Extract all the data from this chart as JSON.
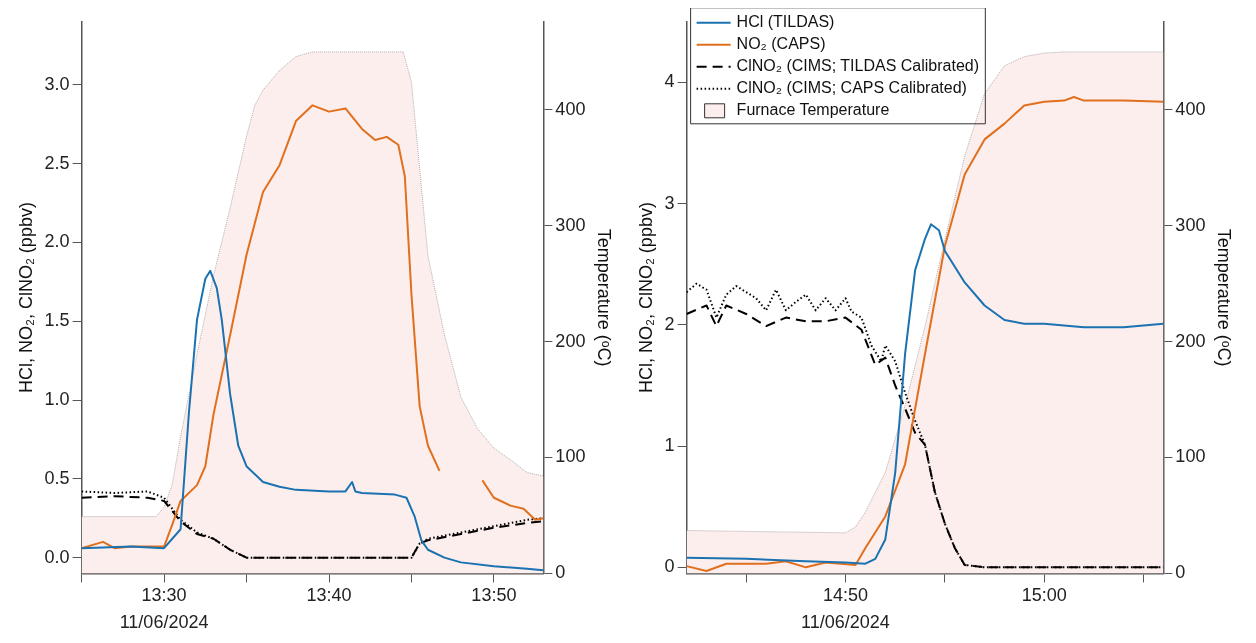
{
  "chart_data": [
    {
      "type": "line",
      "xlabel": "11/06/2024",
      "ylabel": "HCl, NO₂, ClNO₂ (ppbv)",
      "y2label": "Temperature (ᵒC)",
      "xlim": [
        13.4167,
        13.8833
      ],
      "xticks": [
        {
          "value": 13.4167,
          "label": null
        },
        {
          "value": 13.5,
          "label": "13:30"
        },
        {
          "value": 13.5833,
          "label": null
        },
        {
          "value": 13.6667,
          "label": "13:40"
        },
        {
          "value": 13.75,
          "label": null
        },
        {
          "value": 13.8333,
          "label": "13:50"
        }
      ],
      "ylim": [
        -0.1,
        3.4
      ],
      "yticks": [
        {
          "value": 0,
          "label": "0.0"
        },
        0.5,
        {
          "value": 1,
          "label": "1.0"
        },
        1.5,
        {
          "value": 2,
          "label": "2.0"
        },
        2.5,
        {
          "value": 3,
          "label": "3.0"
        }
      ],
      "y2lim": [
        0,
        476
      ],
      "y2ticks": [
        0,
        100,
        200,
        300,
        400
      ],
      "grid": false,
      "legend": false,
      "series": [
        {
          "type": "area",
          "axis": "y2",
          "color": "#fdeeee",
          "x": [
            13.4167,
            13.4917,
            13.5,
            13.5083,
            13.5167,
            13.5333,
            13.55,
            13.5667,
            13.5833,
            13.5917,
            13.6,
            13.6167,
            13.6333,
            13.65,
            13.7417,
            13.75,
            13.7583,
            13.7667,
            13.7833,
            13.8,
            13.8167,
            13.8333,
            13.85,
            13.8667,
            13.8833
          ],
          "values": [
            49,
            49,
            57,
            77,
            118,
            189,
            257,
            315,
            377,
            404,
            417,
            434,
            446,
            450,
            450,
            424,
            349,
            274,
            206,
            152,
            125,
            108,
            98,
            87,
            84
          ]
        },
        {
          "type": "line",
          "color": "#1a72b0",
          "x": [
            13.4167,
            13.4667,
            13.5,
            13.5167,
            13.525,
            13.5333,
            13.5417,
            13.5467,
            13.5533,
            13.5583,
            13.5667,
            13.575,
            13.5833,
            13.6,
            13.6167,
            13.6333,
            13.6667,
            13.6833,
            13.69,
            13.6933,
            13.7,
            13.7333,
            13.745,
            13.7533,
            13.76,
            13.7667,
            13.7833,
            13.8,
            13.8333,
            13.8667,
            13.8833
          ],
          "values": [
            0.06,
            0.07,
            0.06,
            0.18,
            0.91,
            1.51,
            1.77,
            1.82,
            1.71,
            1.51,
            1.04,
            0.71,
            0.58,
            0.48,
            0.45,
            0.43,
            0.42,
            0.42,
            0.48,
            0.42,
            0.41,
            0.4,
            0.38,
            0.26,
            0.11,
            0.05,
            0,
            -0.03,
            -0.055,
            -0.07,
            -0.08
          ]
        },
        {
          "type": "line",
          "color": "#e0701e",
          "x": [
            13.4167,
            13.4383,
            13.45,
            13.4667,
            13.5,
            13.5083,
            13.5167,
            13.5333,
            13.5417,
            13.55,
            13.5667,
            13.5833,
            13.6,
            13.6167,
            13.6333,
            13.65,
            13.6667,
            13.6833,
            13.7,
            13.7133,
            13.725,
            13.7367,
            13.7433,
            13.75,
            13.7583,
            13.7667,
            13.7783,
            13.8,
            13.8217,
            13.8333,
            13.85,
            13.8633,
            13.875,
            13.8833
          ],
          "values": [
            0.06,
            0.1,
            0.06,
            0.07,
            0.07,
            0.21,
            0.36,
            0.46,
            0.58,
            0.91,
            1.41,
            1.92,
            2.32,
            2.49,
            2.77,
            2.87,
            2.83,
            2.85,
            2.72,
            2.65,
            2.67,
            2.62,
            2.42,
            1.67,
            0.96,
            0.71,
            0.55,
            null,
            0.49,
            0.38,
            0.33,
            0.31,
            0.24,
            0.25
          ]
        },
        {
          "type": "line",
          "color": "#000000",
          "line_style": "dashed",
          "x": [
            13.4167,
            13.45,
            13.4833,
            13.5,
            13.5167,
            13.5333,
            13.55,
            13.5667,
            13.5833,
            13.75,
            13.7583,
            13.7667,
            13.8,
            13.8333,
            13.8667,
            13.8833
          ],
          "values": [
            0.38,
            0.39,
            0.38,
            0.36,
            0.23,
            0.15,
            0.12,
            0.05,
            0,
            0,
            0.09,
            0.11,
            0.15,
            0.19,
            0.22,
            0.23
          ]
        },
        {
          "type": "line",
          "color": "#000000",
          "line_style": "dotted",
          "x": [
            13.4167,
            13.45,
            13.4833,
            13.5,
            13.5167,
            13.5333,
            13.55,
            13.5667,
            13.5833,
            13.75,
            13.7583,
            13.7667,
            13.8,
            13.8333,
            13.8667,
            13.8833
          ],
          "values": [
            0.42,
            0.41,
            0.42,
            0.38,
            0.24,
            0.16,
            0.12,
            0.05,
            0,
            0,
            0.09,
            0.12,
            0.16,
            0.2,
            0.24,
            0.25
          ]
        }
      ]
    },
    {
      "type": "line",
      "xlabel": "11/06/2024",
      "ylabel": "HCl, NO₂, ClNO₂ (ppbv)",
      "y2label": "Temperature (ᵒC)",
      "xlim": [
        14.7,
        15.1
      ],
      "xticks": [
        {
          "value": 14.75,
          "label": null
        },
        {
          "value": 14.8333,
          "label": "14:50"
        },
        {
          "value": 14.9167,
          "label": null
        },
        {
          "value": 15,
          "label": "15:00"
        },
        {
          "value": 15.0833,
          "label": null
        }
      ],
      "ylim": [
        -0.05,
        4.5
      ],
      "yticks": [
        0,
        1,
        2,
        3,
        4
      ],
      "y2lim": [
        0,
        476
      ],
      "y2ticks": [
        0,
        100,
        200,
        300,
        400
      ],
      "grid": false,
      "legend": "top left",
      "series": [
        {
          "name": "HCl (TILDAS)",
          "type": "line",
          "color": "#1a72b0",
          "x": [
            14.7,
            14.75,
            14.8,
            14.8333,
            14.85,
            14.8583,
            14.8667,
            14.875,
            14.8833,
            14.8917,
            14.9,
            14.905,
            14.9117,
            14.9167,
            14.9333,
            14.95,
            14.9667,
            14.9833,
            15,
            15.0333,
            15.0667,
            15.1
          ],
          "values": [
            0.08,
            0.07,
            0.05,
            0.04,
            0.03,
            0.07,
            0.23,
            0.78,
            1.76,
            2.45,
            2.71,
            2.83,
            2.78,
            2.61,
            2.35,
            2.16,
            2.04,
            2.01,
            2.01,
            1.98,
            1.98,
            2.01
          ]
        },
        {
          "name": "NO₂ (CAPS)",
          "type": "line",
          "color": "#e0701e",
          "x": [
            14.7,
            14.7167,
            14.7333,
            14.7667,
            14.7833,
            14.8,
            14.8167,
            14.8417,
            14.85,
            14.8667,
            14.8833,
            14.9,
            14.9167,
            14.9333,
            14.95,
            14.9667,
            14.9833,
            15,
            15.0167,
            15.025,
            15.0333,
            15.0667,
            15.1
          ],
          "values": [
            0.01,
            -0.03,
            0.03,
            0.03,
            0.05,
            0,
            0.04,
            0.02,
            0.16,
            0.42,
            0.85,
            1.76,
            2.65,
            3.24,
            3.53,
            3.66,
            3.81,
            3.84,
            3.85,
            3.88,
            3.85,
            3.85,
            3.84
          ]
        },
        {
          "name": "ClNO₂ (CIMS; TILDAS Calibrated)",
          "type": "line",
          "color": "#000000",
          "line_style": "dashed",
          "x": [
            14.7,
            14.7167,
            14.725,
            14.7333,
            14.75,
            14.7667,
            14.7833,
            14.8,
            14.8167,
            14.8333,
            14.8467,
            14.8583,
            14.8667,
            14.875,
            14.8833,
            14.8917,
            14.9,
            14.9083,
            14.9167,
            14.925,
            14.9333,
            14.95,
            15,
            15.1
          ],
          "values": [
            2.09,
            2.16,
            1.99,
            2.16,
            2.09,
            1.99,
            2.06,
            2.03,
            2.03,
            2.06,
            1.96,
            1.67,
            1.73,
            1.5,
            1.31,
            1.11,
            1.01,
            0.62,
            0.36,
            0.16,
            0.02,
            0,
            0,
            0
          ]
        },
        {
          "name": "ClNO₂ (CIMS; CAPS Calibrated)",
          "type": "line",
          "color": "#000000",
          "line_style": "dotted",
          "x": [
            14.7,
            14.7083,
            14.7167,
            14.725,
            14.7333,
            14.7417,
            14.7583,
            14.7667,
            14.775,
            14.7833,
            14.7917,
            14.8,
            14.8083,
            14.8167,
            14.825,
            14.8333,
            14.8383,
            14.8467,
            14.855,
            14.8633,
            14.8667,
            14.875,
            14.8833,
            14.8917,
            14.9,
            14.9083,
            14.9167,
            14.925,
            14.9333,
            14.95,
            15,
            15.1
          ],
          "values": [
            2.27,
            2.34,
            2.29,
            2.06,
            2.25,
            2.32,
            2.22,
            2.12,
            2.29,
            2.12,
            2.19,
            2.25,
            2.12,
            2.22,
            2.12,
            2.22,
            2.11,
            2.06,
            1.83,
            1.7,
            1.83,
            1.7,
            1.44,
            1.21,
            1.01,
            0.62,
            0.36,
            0.16,
            0.02,
            0,
            0,
            0
          ]
        },
        {
          "name": "Furnace Temperature",
          "type": "area",
          "axis": "y2",
          "color": "#fdeeee",
          "x": [
            14.7,
            14.8333,
            14.8417,
            14.85,
            14.8667,
            14.8833,
            14.9,
            14.9167,
            14.9333,
            14.95,
            14.9667,
            14.9833,
            15,
            15.0167,
            15.1
          ],
          "values": [
            37,
            35,
            40,
            53,
            87,
            145,
            213,
            288,
            360,
            414,
            438,
            446,
            449,
            450,
            450
          ]
        }
      ]
    }
  ]
}
